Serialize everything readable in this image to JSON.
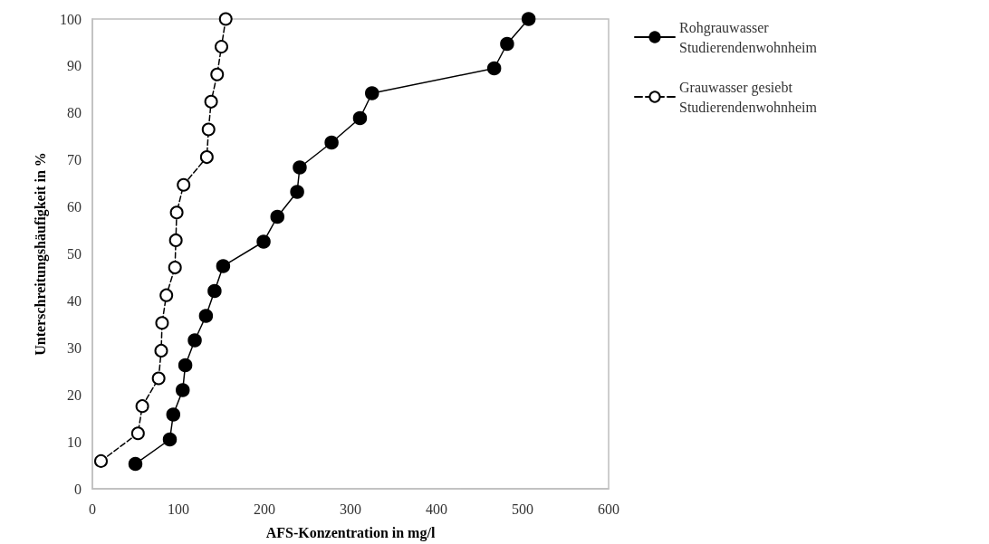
{
  "chart_data": {
    "type": "line",
    "xlabel": "AFS-Konzentration in mg/l",
    "ylabel": "Unterschreitungshäufigkeit in %",
    "xlim": [
      0,
      600
    ],
    "xticks": [
      0,
      100,
      200,
      300,
      400,
      500,
      600
    ],
    "ylim": [
      0,
      100
    ],
    "yticks": [
      0,
      10,
      20,
      30,
      40,
      50,
      60,
      70,
      80,
      90,
      100
    ],
    "grid": false,
    "legend": "right",
    "marker": "circle",
    "series": [
      {
        "name": "Rohgrauwasser\nStudierendenwohnheim",
        "color": "#000000",
        "line_style": "solid",
        "x": [
          50,
          90,
          94,
          105,
          108,
          119,
          132,
          142,
          152,
          199,
          215,
          238,
          241,
          278,
          311,
          325,
          467,
          482,
          507
        ],
        "values": [
          5.3,
          10.5,
          15.8,
          21,
          26.3,
          31.6,
          36.8,
          42.1,
          47.4,
          52.6,
          57.9,
          63.2,
          68.4,
          73.7,
          78.9,
          84.2,
          89.5,
          94.7,
          100
        ]
      },
      {
        "name": "Grauwasser gesiebt\nStudierendenwohnheim",
        "color": "#000000",
        "line_style": "dashed",
        "x": [
          10,
          53,
          58,
          77,
          80,
          81,
          86,
          96,
          97,
          98,
          106,
          133,
          135,
          138,
          145,
          150,
          155
        ],
        "values": [
          5.9,
          11.8,
          17.6,
          23.5,
          29.4,
          35.3,
          41.2,
          47.1,
          52.9,
          58.8,
          64.7,
          70.6,
          76.5,
          82.4,
          88.2,
          94.1,
          100
        ]
      }
    ]
  }
}
